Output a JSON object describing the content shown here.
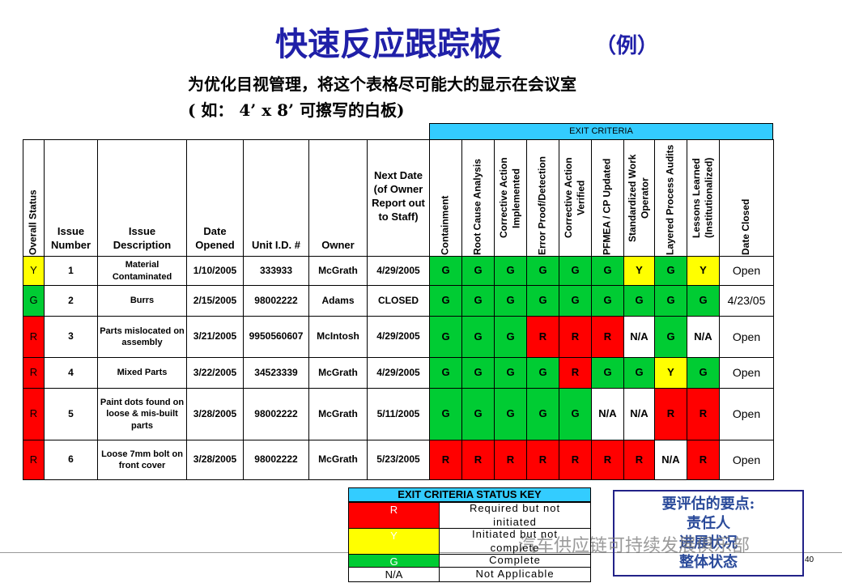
{
  "header": {
    "title": "快速反应跟踪板",
    "title_note": "（例）",
    "subtitle_lines": [
      "为优化目视管理，将这个表格尽可能大的显示在会议室",
      "( 如： 4’ x 8’ 可擦写的白板)"
    ]
  },
  "table": {
    "group_header": "EXIT CRITERIA",
    "columns": [
      "Overall Status",
      "Issue Number",
      "Issue Description",
      "Date Opened",
      "Unit I.D. #",
      "Owner",
      "Next Date (of Owner Report out to Staff)",
      "Containment",
      "Root Cause Analysis",
      "Corrective Action Implemented",
      "Error Proof/Detection",
      "Corrective Action Verified",
      "PFMEA / CP Updated",
      "Standardized Work Operator",
      "Layered Process Audits",
      "Lessons Learned (Institutionalized)",
      "Date Closed"
    ],
    "rows": [
      [
        "Y",
        "1",
        "Material Contaminated",
        "1/10/2005",
        "333933",
        "McGrath",
        "4/29/2005",
        "G",
        "G",
        "G",
        "G",
        "G",
        "G",
        "Y",
        "G",
        "Y",
        "Open"
      ],
      [
        "G",
        "2",
        "Burrs",
        "2/15/2005",
        "98002222",
        "Adams",
        "CLOSED",
        "G",
        "G",
        "G",
        "G",
        "G",
        "G",
        "G",
        "G",
        "G",
        "4/23/05"
      ],
      [
        "R",
        "3",
        "Parts mislocated on assembly",
        "3/21/2005",
        "9950560607",
        "McIntosh",
        "4/29/2005",
        "G",
        "G",
        "G",
        "R",
        "R",
        "R",
        "N/A",
        "G",
        "N/A",
        "Open"
      ],
      [
        "R",
        "4",
        "Mixed Parts",
        "3/22/2005",
        "34523339",
        "McGrath",
        "4/29/2005",
        "G",
        "G",
        "G",
        "G",
        "R",
        "G",
        "G",
        "Y",
        "G",
        "Open"
      ],
      [
        "R",
        "5",
        "Paint dots found on loose & mis-built parts",
        "3/28/2005",
        "98002222",
        "McGrath",
        "5/11/2005",
        "G",
        "G",
        "G",
        "G",
        "G",
        "N/A",
        "N/A",
        "R",
        "R",
        "Open"
      ],
      [
        "R",
        "6",
        "Loose 7mm bolt on front cover",
        "3/28/2005",
        "98002222",
        "McGrath",
        "5/23/2005",
        "R",
        "R",
        "R",
        "R",
        "R",
        "R",
        "R",
        "N/A",
        "R",
        "Open"
      ]
    ]
  },
  "key": {
    "title": "EXIT CRITERIA STATUS KEY",
    "rows": [
      {
        "code": "R",
        "meaning": "Required but not initiated",
        "color": "#ff0000"
      },
      {
        "code": "Y",
        "meaning": "Initiated but not complete",
        "color": "#ffff00"
      },
      {
        "code": "G",
        "meaning": "Complete",
        "color": "#00cc33"
      },
      {
        "code": "N/A",
        "meaning": "Not Applicable",
        "color": "#ffffff"
      }
    ]
  },
  "notes": {
    "title": "要评估的要点:",
    "items": [
      "责任人",
      "进展状况",
      "整体状态"
    ]
  },
  "footer": {
    "watermark": "汽车供应链可持续发展俱乐部",
    "page_number": "40"
  }
}
